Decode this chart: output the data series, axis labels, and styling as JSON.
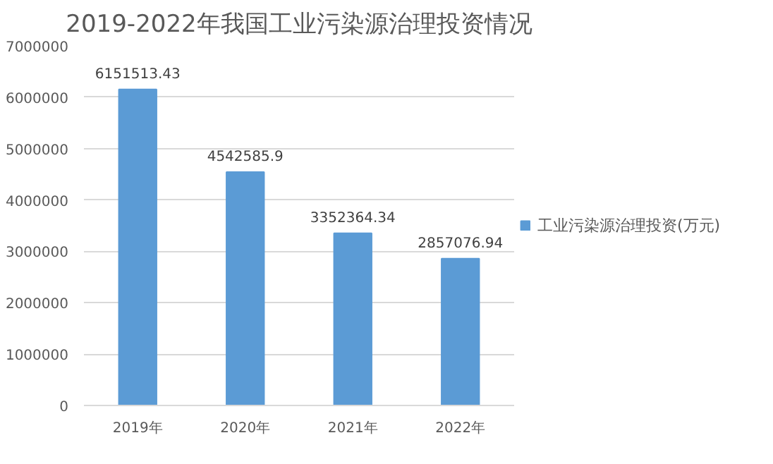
{
  "chart_data": {
    "type": "bar",
    "title": "2019-2022年我国工业污染源治理投资情况",
    "categories": [
      "2019年",
      "2020年",
      "2021年",
      "2022年"
    ],
    "series": [
      {
        "name": "工业污染源治理投资(万元)",
        "color": "#5b9bd5",
        "values": [
          6151513.43,
          4542585.9,
          3352364.34,
          2857076.94
        ]
      }
    ],
    "ylim": [
      0,
      7000000
    ],
    "yticks": [
      0,
      1000000,
      2000000,
      3000000,
      4000000,
      5000000,
      6000000,
      7000000
    ],
    "grid": "y",
    "legend": "right",
    "data_labels": true
  }
}
